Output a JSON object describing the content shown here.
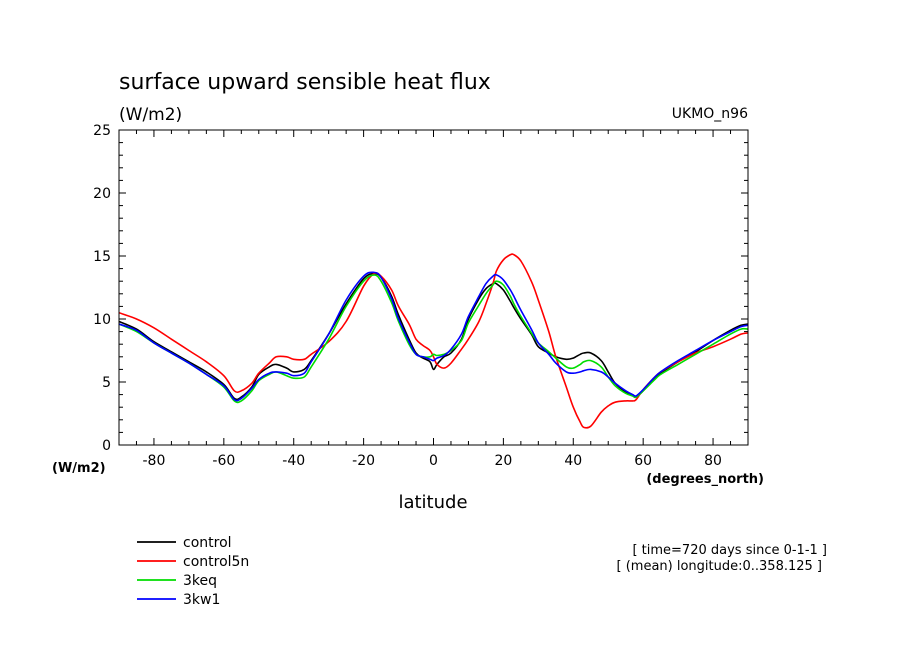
{
  "chart_data": {
    "type": "line",
    "title": "surface upward sensible heat flux",
    "units_label": "(W/m2)",
    "model_label": "UKMO_n96",
    "ylabel": "(W/m2)",
    "xlabel": "latitude",
    "x_unit_label": "(degrees_north)",
    "xlim": [
      -90,
      90
    ],
    "ylim": [
      0,
      25
    ],
    "x_ticks": [
      -80,
      -60,
      -40,
      -20,
      0,
      20,
      40,
      60,
      80
    ],
    "x_tick_labels": [
      "-80",
      "-60",
      "-40",
      "-20",
      "0",
      "20",
      "40",
      "60",
      "80"
    ],
    "y_ticks": [
      0,
      5,
      10,
      15,
      20,
      25
    ],
    "y_tick_labels": [
      "0",
      "5",
      "10",
      "15",
      "20",
      "25"
    ],
    "grid": false,
    "legend_position": "bottom-left",
    "info_lines": [
      "[ time=720 days since 0-1-1 ]",
      "[ (mean) longitude:0..358.125 ]"
    ],
    "x": [
      -90,
      -85,
      -80,
      -75,
      -70,
      -65,
      -60,
      -57,
      -55,
      -52,
      -50,
      -47,
      -45,
      -42,
      -40,
      -37,
      -35,
      -30,
      -25,
      -20,
      -17,
      -15,
      -12,
      -10,
      -7,
      -5,
      -3,
      -1,
      0,
      1,
      3,
      5,
      8,
      10,
      13,
      15,
      17,
      18,
      20,
      22,
      23,
      25,
      28,
      30,
      33,
      35,
      38,
      40,
      42,
      43,
      45,
      48,
      50,
      52,
      55,
      57,
      58,
      60,
      63,
      65,
      70,
      75,
      80,
      85,
      88,
      90
    ],
    "series": [
      {
        "name": "control",
        "color": "#000000",
        "values": [
          9.8,
          9.2,
          8.2,
          7.4,
          6.6,
          5.8,
          4.8,
          3.7,
          3.8,
          4.6,
          5.6,
          6.2,
          6.4,
          6.1,
          5.8,
          6.0,
          6.7,
          8.8,
          11.2,
          13.2,
          13.6,
          13.3,
          11.8,
          10.3,
          8.4,
          7.3,
          6.9,
          6.6,
          6.0,
          6.4,
          7.0,
          7.3,
          8.4,
          10.0,
          11.6,
          12.4,
          12.8,
          12.8,
          12.3,
          11.4,
          10.9,
          10.0,
          8.8,
          7.8,
          7.3,
          7.0,
          6.8,
          6.9,
          7.2,
          7.3,
          7.3,
          6.7,
          5.8,
          4.9,
          4.2,
          3.9,
          3.8,
          4.3,
          5.2,
          5.7,
          6.6,
          7.4,
          8.3,
          9.1,
          9.5,
          9.6
        ]
      },
      {
        "name": "control5n",
        "color": "#ff0000",
        "values": [
          10.5,
          10.0,
          9.3,
          8.4,
          7.5,
          6.6,
          5.5,
          4.3,
          4.3,
          4.9,
          5.7,
          6.5,
          7.0,
          7.0,
          6.8,
          6.8,
          7.2,
          8.2,
          9.8,
          12.6,
          13.6,
          13.4,
          12.3,
          11.0,
          9.6,
          8.4,
          7.9,
          7.5,
          7.0,
          6.4,
          6.1,
          6.5,
          7.6,
          8.4,
          9.8,
          11.2,
          12.8,
          13.8,
          14.7,
          15.1,
          15.1,
          14.6,
          13.0,
          11.5,
          9.0,
          7.0,
          4.6,
          3.0,
          1.8,
          1.4,
          1.5,
          2.6,
          3.1,
          3.4,
          3.5,
          3.5,
          3.6,
          4.4,
          5.3,
          5.8,
          6.6,
          7.3,
          7.8,
          8.4,
          8.8,
          8.9
        ]
      },
      {
        "name": "3keq",
        "color": "#00dd00",
        "values": [
          9.6,
          9.0,
          8.1,
          7.3,
          6.5,
          5.6,
          4.6,
          3.5,
          3.5,
          4.3,
          5.1,
          5.6,
          5.8,
          5.5,
          5.3,
          5.4,
          6.2,
          8.4,
          11.0,
          13.0,
          13.5,
          13.0,
          11.3,
          9.8,
          8.0,
          7.2,
          7.0,
          7.0,
          7.2,
          7.1,
          7.2,
          7.5,
          8.3,
          9.7,
          11.1,
          12.0,
          12.7,
          13.0,
          12.7,
          11.8,
          11.2,
          10.2,
          8.9,
          8.1,
          7.4,
          6.9,
          6.2,
          6.1,
          6.4,
          6.6,
          6.7,
          6.2,
          5.4,
          4.7,
          4.1,
          3.9,
          3.8,
          4.3,
          5.1,
          5.6,
          6.4,
          7.2,
          8.0,
          8.8,
          9.2,
          9.2
        ]
      },
      {
        "name": "3kw1",
        "color": "#0000ff",
        "values": [
          9.6,
          9.1,
          8.1,
          7.3,
          6.5,
          5.6,
          4.7,
          3.6,
          3.7,
          4.5,
          5.2,
          5.7,
          5.8,
          5.7,
          5.5,
          5.7,
          6.6,
          8.8,
          11.5,
          13.4,
          13.7,
          13.3,
          11.6,
          10.0,
          8.2,
          7.2,
          7.0,
          6.8,
          6.7,
          6.9,
          7.1,
          7.6,
          8.8,
          10.2,
          11.8,
          12.8,
          13.4,
          13.5,
          13.1,
          12.3,
          11.8,
          10.7,
          9.2,
          8.1,
          7.2,
          6.5,
          5.8,
          5.7,
          5.8,
          5.9,
          6.0,
          5.8,
          5.4,
          4.9,
          4.3,
          4.0,
          3.9,
          4.4,
          5.3,
          5.8,
          6.7,
          7.5,
          8.3,
          9.0,
          9.4,
          9.5
        ]
      }
    ]
  }
}
